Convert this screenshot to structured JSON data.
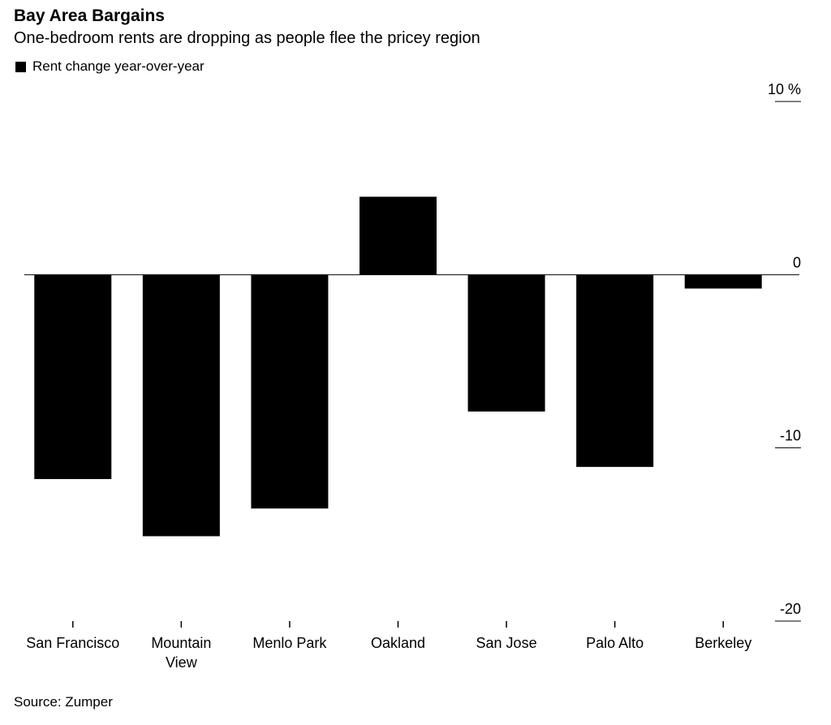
{
  "title": "Bay Area Bargains",
  "subtitle": "One-bedroom rents are dropping as people flee the pricey region",
  "source": "Source: Zumper",
  "colors": {
    "bar": "#000000",
    "zero_line": "#000000",
    "background": "#ffffff"
  },
  "chart_data": {
    "type": "bar",
    "series": [
      {
        "name": "Rent change year-over-year",
        "values": [
          -11.8,
          -15.1,
          -13.5,
          4.5,
          -7.9,
          -11.1,
          -0.8
        ]
      }
    ],
    "categories": [
      "San Francisco",
      "Mountain\nView",
      "Menlo Park",
      "Oakland",
      "San Jose",
      "Palo Alto",
      "Berkeley"
    ],
    "ylim": [
      -20,
      10
    ],
    "yticks": [
      10,
      0,
      -10,
      -20
    ],
    "ytick_labels": [
      "10 %",
      "0",
      "-10",
      "-20"
    ],
    "grid": false,
    "legend_position": "top-left",
    "y_axis_side": "right"
  }
}
